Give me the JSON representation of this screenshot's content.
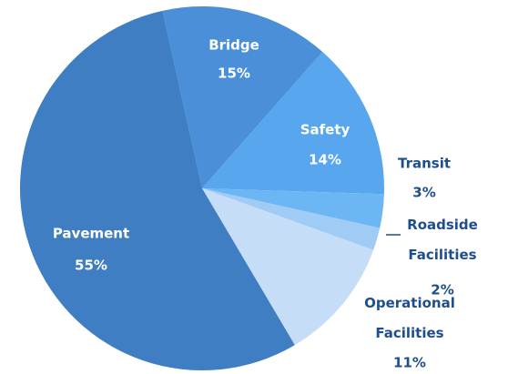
{
  "chart_data": {
    "type": "pie",
    "categories": [
      "Bridge",
      "Safety",
      "Transit",
      "Roadside Facilities",
      "Operational Facilities",
      "Pavement"
    ],
    "values": [
      15,
      14,
      3,
      2,
      11,
      55
    ],
    "value_labels": [
      "15%",
      "14%",
      "3%",
      "2%",
      "11%",
      "55%"
    ],
    "colors": [
      "#4a8fd8",
      "#57a6ee",
      "#6cb6f4",
      "#9fcbf4",
      "#c6ddf7",
      "#3f7ec2"
    ]
  }
}
